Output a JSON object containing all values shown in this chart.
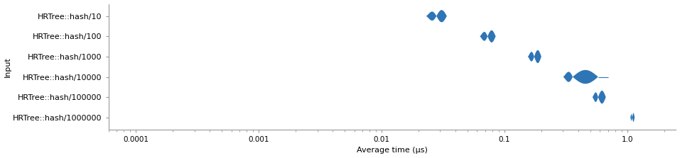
{
  "ylabel": "Input",
  "xlabel": "Average time (μs)",
  "categories": [
    "HRTree::hash/10",
    "HRTree::hash/100",
    "HRTree::hash/1000",
    "HRTree::hash/10000",
    "HRTree::hash/100000",
    "HRTree::hash/1000000"
  ],
  "means": [
    0.028,
    0.073,
    0.175,
    0.36,
    0.58,
    1.1
  ],
  "x_low": [
    0.023,
    0.063,
    0.155,
    0.3,
    0.52,
    1.06
  ],
  "x_high": [
    0.034,
    0.085,
    0.2,
    0.58,
    0.67,
    1.15
  ],
  "x_whisker_far": [
    null,
    null,
    null,
    0.7,
    null,
    null
  ],
  "violin_half_height": [
    0.3,
    0.3,
    0.32,
    0.34,
    0.32,
    0.22
  ],
  "color": "#2e75b6",
  "xlim_low": 6e-05,
  "xlim_high": 2.5,
  "background_color": "#ffffff",
  "spine_color": "#999999",
  "label_fontsize": 8,
  "tick_fontsize": 7.5
}
